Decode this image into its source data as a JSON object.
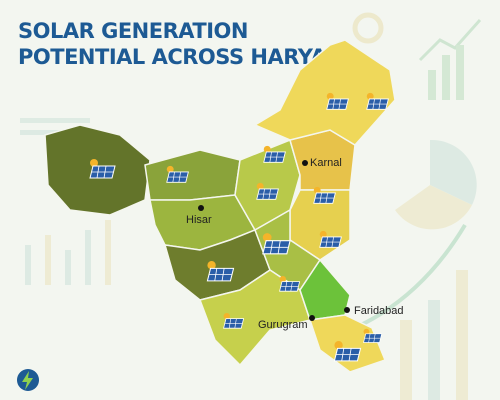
{
  "title": [
    "SOLAR GENERATION",
    "POTENTIAL ACROSS HARYANA"
  ],
  "cities": [
    {
      "label": "Karnal"
    },
    {
      "label": "Hisar"
    },
    {
      "label": "Gurugram"
    },
    {
      "label": "Faridabad"
    }
  ]
}
